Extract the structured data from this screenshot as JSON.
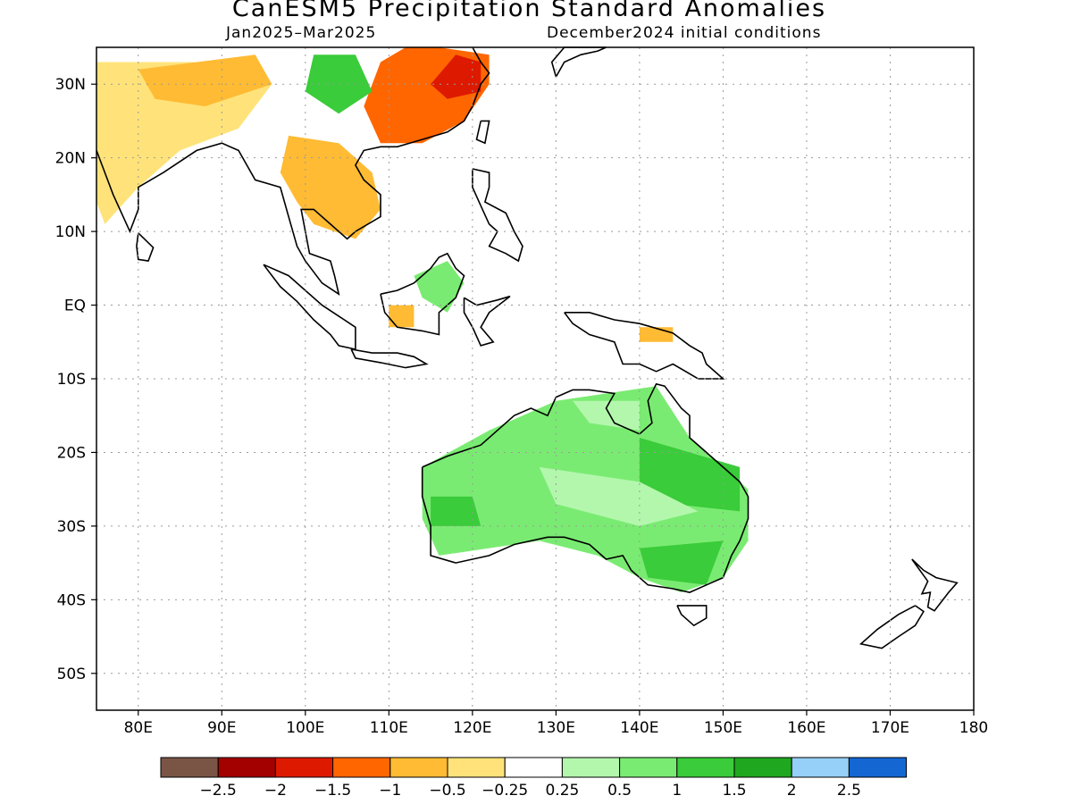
{
  "title": "CanESM5 Precipitation Standard Anomalies",
  "subtitle_left": "Jan2025–Mar2025",
  "subtitle_right": "December2024 initial conditions",
  "axes": {
    "lon_range": [
      75,
      180
    ],
    "lat_range": [
      -55,
      35
    ],
    "x_ticks": [
      {
        "v": 80,
        "label": "80E"
      },
      {
        "v": 90,
        "label": "90E"
      },
      {
        "v": 100,
        "label": "100E"
      },
      {
        "v": 110,
        "label": "110E"
      },
      {
        "v": 120,
        "label": "120E"
      },
      {
        "v": 130,
        "label": "130E"
      },
      {
        "v": 140,
        "label": "140E"
      },
      {
        "v": 150,
        "label": "150E"
      },
      {
        "v": 160,
        "label": "160E"
      },
      {
        "v": 170,
        "label": "170E"
      },
      {
        "v": 180,
        "label": "180"
      }
    ],
    "y_ticks": [
      {
        "v": 30,
        "label": "30N"
      },
      {
        "v": 20,
        "label": "20N"
      },
      {
        "v": 10,
        "label": "10N"
      },
      {
        "v": 0,
        "label": "EQ"
      },
      {
        "v": -10,
        "label": "10S"
      },
      {
        "v": -20,
        "label": "20S"
      },
      {
        "v": -30,
        "label": "30S"
      },
      {
        "v": -40,
        "label": "40S"
      },
      {
        "v": -50,
        "label": "50S"
      }
    ],
    "grid": true
  },
  "legend": {
    "colors": [
      "#7a5546",
      "#a30000",
      "#dd1a00",
      "#ff6600",
      "#ffbb33",
      "#ffe37a",
      "#ffffff",
      "#b3f7ad",
      "#7aeb72",
      "#3acc3a",
      "#1fa81f",
      "#96d0f8",
      "#1466d2"
    ],
    "labels": [
      "−2.5",
      "−2",
      "−1.5",
      "−1",
      "−0.5",
      "−0.25",
      "0.25",
      "0.5",
      "1",
      "1.5",
      "2",
      "2.5"
    ]
  },
  "anomaly_regions": [
    {
      "name": "south-china-dry",
      "color": "#ff6600",
      "pts": [
        [
          116,
          35
        ],
        [
          122,
          34
        ],
        [
          122,
          30
        ],
        [
          119,
          25
        ],
        [
          114,
          22
        ],
        [
          109,
          22
        ],
        [
          107,
          27
        ],
        [
          109,
          33
        ],
        [
          112,
          35
        ]
      ]
    },
    {
      "name": "south-china-very-dry",
      "color": "#dd1a00",
      "pts": [
        [
          118,
          34
        ],
        [
          121,
          33
        ],
        [
          121,
          29
        ],
        [
          117,
          28
        ],
        [
          115,
          30
        ]
      ]
    },
    {
      "name": "indochina-dry",
      "color": "#ffbb33",
      "pts": [
        [
          98,
          23
        ],
        [
          104,
          22
        ],
        [
          108,
          18
        ],
        [
          109,
          13
        ],
        [
          106,
          9
        ],
        [
          101,
          11
        ],
        [
          99,
          14
        ],
        [
          97,
          18
        ]
      ]
    },
    {
      "name": "india-dry",
      "color": "#ffe37a",
      "pts": [
        [
          75,
          33
        ],
        [
          90,
          33
        ],
        [
          96,
          30
        ],
        [
          92,
          24
        ],
        [
          85,
          21
        ],
        [
          80,
          16
        ],
        [
          76,
          11
        ],
        [
          75,
          14
        ]
      ]
    },
    {
      "name": "himalaya-dry",
      "color": "#ffbb33",
      "pts": [
        [
          80,
          32
        ],
        [
          94,
          34
        ],
        [
          96,
          30
        ],
        [
          88,
          27
        ],
        [
          82,
          28
        ]
      ]
    },
    {
      "name": "yunnan-wet",
      "color": "#3acc3a",
      "pts": [
        [
          101,
          34
        ],
        [
          106,
          34
        ],
        [
          108,
          29
        ],
        [
          104,
          26
        ],
        [
          100,
          29
        ]
      ]
    },
    {
      "name": "borneo-wet",
      "color": "#7aeb72",
      "pts": [
        [
          113,
          4
        ],
        [
          117,
          6
        ],
        [
          119,
          3
        ],
        [
          117,
          -1
        ],
        [
          114,
          1
        ]
      ]
    },
    {
      "name": "borneo-dry",
      "color": "#ffbb33",
      "pts": [
        [
          110,
          0
        ],
        [
          113,
          0
        ],
        [
          113,
          -3
        ],
        [
          110,
          -3
        ]
      ]
    },
    {
      "name": "newguinea-dry",
      "color": "#ffbb33",
      "pts": [
        [
          140,
          -3
        ],
        [
          144,
          -3
        ],
        [
          144,
          -5
        ],
        [
          140,
          -5
        ]
      ]
    },
    {
      "name": "australia-wet",
      "color": "#7aeb72",
      "pts": [
        [
          114,
          -22
        ],
        [
          122,
          -17
        ],
        [
          130,
          -13
        ],
        [
          136,
          -12
        ],
        [
          142,
          -11
        ],
        [
          146,
          -18
        ],
        [
          153,
          -25
        ],
        [
          153,
          -32
        ],
        [
          150,
          -37
        ],
        [
          145,
          -39
        ],
        [
          140,
          -37
        ],
        [
          135,
          -34
        ],
        [
          128,
          -32
        ],
        [
          122,
          -33
        ],
        [
          116,
          -34
        ],
        [
          114,
          -29
        ]
      ]
    },
    {
      "name": "australia-east-wet",
      "color": "#3acc3a",
      "pts": [
        [
          140,
          -18
        ],
        [
          152,
          -22
        ],
        [
          152,
          -28
        ],
        [
          144,
          -27
        ],
        [
          140,
          -24
        ]
      ]
    },
    {
      "name": "australia-se-wet",
      "color": "#3acc3a",
      "pts": [
        [
          140,
          -33
        ],
        [
          150,
          -32
        ],
        [
          148,
          -38
        ],
        [
          141,
          -37
        ]
      ]
    },
    {
      "name": "australia-west-wet",
      "color": "#3acc3a",
      "pts": [
        [
          115,
          -26
        ],
        [
          120,
          -26
        ],
        [
          121,
          -30
        ],
        [
          115,
          -30
        ]
      ]
    },
    {
      "name": "australia-central-light",
      "color": "#b3f7ad",
      "pts": [
        [
          128,
          -22
        ],
        [
          140,
          -24
        ],
        [
          147,
          -28
        ],
        [
          140,
          -30
        ],
        [
          130,
          -27
        ]
      ]
    },
    {
      "name": "australia-north-light",
      "color": "#b3f7ad",
      "pts": [
        [
          132,
          -13
        ],
        [
          140,
          -13
        ],
        [
          140,
          -17
        ],
        [
          134,
          -16
        ]
      ]
    }
  ]
}
